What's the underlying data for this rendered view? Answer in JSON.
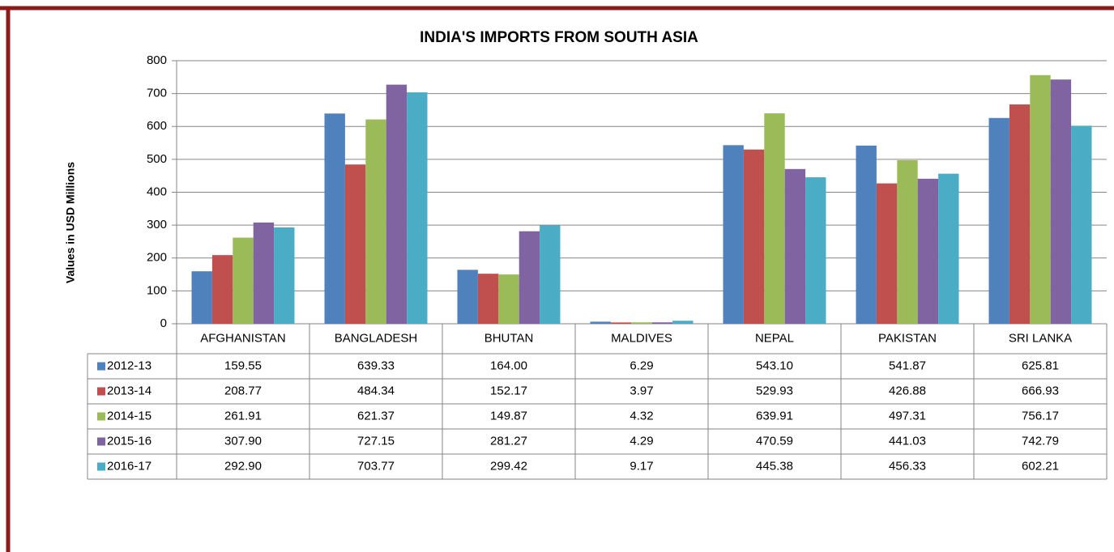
{
  "chart_data": {
    "type": "bar",
    "title": "INDIA'S IMPORTS FROM SOUTH ASIA",
    "y_label": "Values in USD  Millions",
    "categories": [
      "AFGHANISTAN",
      "BANGLADESH",
      "BHUTAN",
      "MALDIVES",
      "NEPAL",
      "PAKISTAN",
      "SRI LANKA"
    ],
    "series": [
      {
        "name": "2012-13",
        "color": "#4f81bd",
        "values": [
          159.55,
          639.33,
          164,
          6.29,
          543.1,
          541.87,
          625.81
        ],
        "value_labels": [
          "159.55",
          "639.33",
          "164.00",
          "6.29",
          "543.10",
          "541.87",
          "625.81"
        ]
      },
      {
        "name": "2013-14",
        "color": "#c0504d",
        "values": [
          208.77,
          484.34,
          152.17,
          3.97,
          529.93,
          426.88,
          666.93
        ],
        "value_labels": [
          "208.77",
          "484.34",
          "152.17",
          "3.97",
          "529.93",
          "426.88",
          "666.93"
        ]
      },
      {
        "name": "2014-15",
        "color": "#9bbb59",
        "values": [
          261.91,
          621.37,
          149.87,
          4.32,
          639.91,
          497.31,
          756.17
        ],
        "value_labels": [
          "261.91",
          "621.37",
          "149.87",
          "4.32",
          "639.91",
          "497.31",
          "756.17"
        ]
      },
      {
        "name": "2015-16",
        "color": "#8064a2",
        "values": [
          307.9,
          727.15,
          281.27,
          4.29,
          470.59,
          441.03,
          742.79
        ],
        "value_labels": [
          "307.90",
          "727.15",
          "281.27",
          "4.29",
          "470.59",
          "441.03",
          "742.79"
        ]
      },
      {
        "name": "2016-17",
        "color": "#4bacc6",
        "values": [
          292.9,
          703.77,
          299.42,
          9.17,
          445.38,
          456.33,
          602.21
        ],
        "value_labels": [
          "292.90",
          "703.77",
          "299.42",
          "9.17",
          "445.38",
          "456.33",
          "602.21"
        ]
      }
    ],
    "ylim": [
      0,
      800
    ],
    "yticks": [
      0,
      100,
      200,
      300,
      400,
      500,
      600,
      700,
      800
    ],
    "grid": true
  }
}
